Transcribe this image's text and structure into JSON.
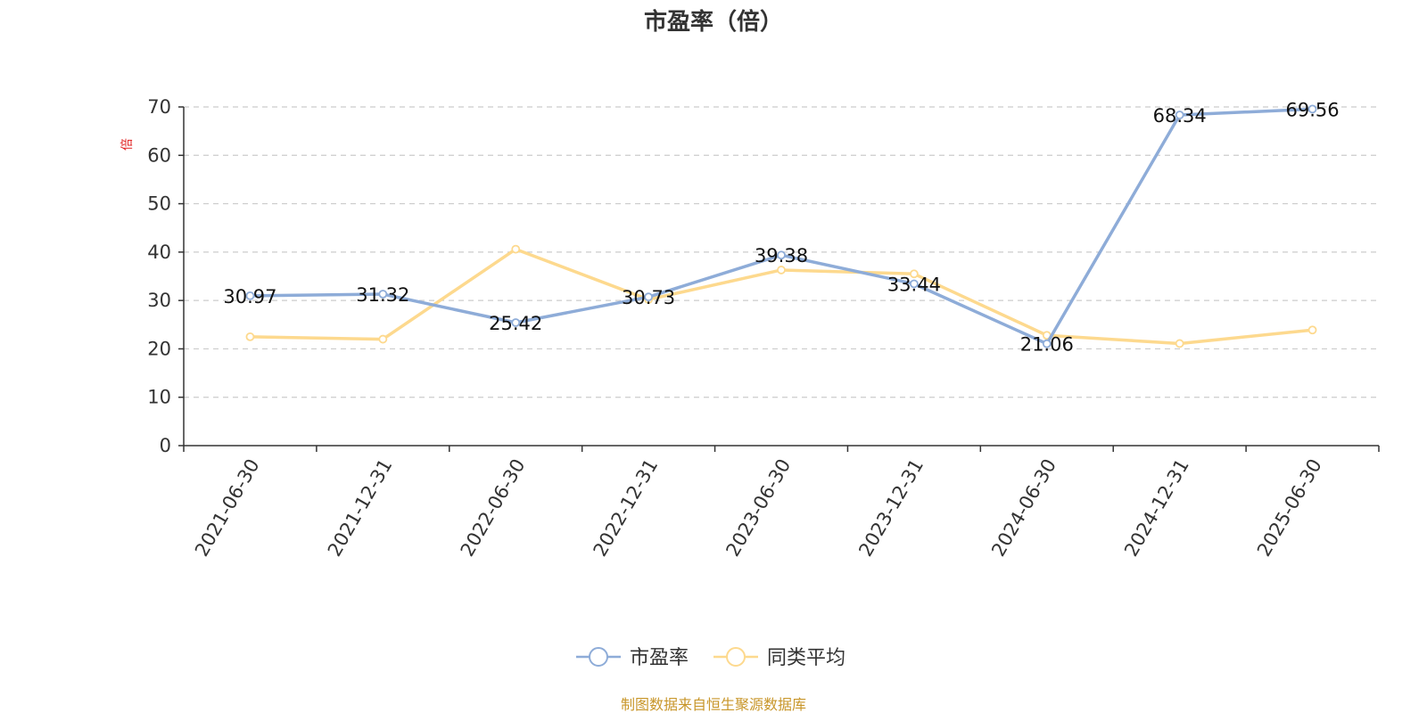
{
  "chart_data": {
    "type": "line",
    "title": "市盈率（倍）",
    "ylabel": "倍",
    "xlabel": "",
    "categories": [
      "2021-06-30",
      "2021-12-31",
      "2022-06-30",
      "2022-12-31",
      "2023-06-30",
      "2023-12-31",
      "2024-06-30",
      "2024-12-31",
      "2025-06-30"
    ],
    "y_ticks": [
      "0",
      "10",
      "20",
      "30",
      "40",
      "50",
      "60",
      "70"
    ],
    "ylim": [
      0,
      70
    ],
    "grid": true,
    "legend_position": "bottom-center",
    "series": [
      {
        "name": "市盈率",
        "color": "#8eacd8",
        "values": [
          30.97,
          31.32,
          25.42,
          30.73,
          39.38,
          33.44,
          21.06,
          68.34,
          69.56
        ],
        "labels": [
          "30.97",
          "31.32",
          "25.42",
          "30.73",
          "39.38",
          "33.44",
          "21.06",
          "68.34",
          "69.56"
        ]
      },
      {
        "name": "同类平均",
        "color": "#fdd98e",
        "values": [
          22.5,
          22.0,
          40.6,
          30.2,
          36.3,
          35.5,
          22.8,
          21.1,
          23.9
        ]
      }
    ],
    "source": "制图数据来自恒生聚源数据库"
  }
}
